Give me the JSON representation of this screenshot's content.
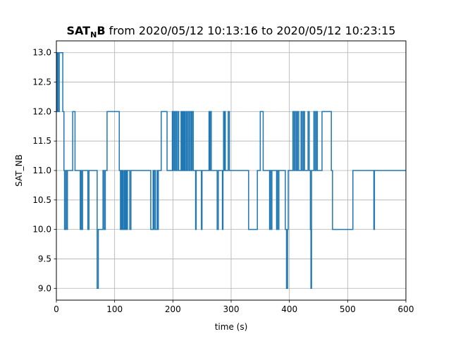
{
  "chart_data": {
    "type": "line",
    "title": {
      "bold": "SAT",
      "sub": "N",
      "bold2": "B",
      "rest": " from 2020/05/12 10:13:16 to 2020/05/12 10:23:15"
    },
    "xlabel": "time (s)",
    "ylabel": "SAT_NB",
    "xlim": [
      0,
      600
    ],
    "ylim": [
      8.8,
      13.2
    ],
    "xticks": [
      0,
      100,
      200,
      300,
      400,
      500,
      600
    ],
    "xtick_labels": [
      "0",
      "100",
      "200",
      "300",
      "400",
      "500",
      "600"
    ],
    "yticks": [
      9.0,
      9.5,
      10.0,
      10.5,
      11.0,
      11.5,
      12.0,
      12.5,
      13.0
    ],
    "ytick_labels": [
      "9.0",
      "9.5",
      "10.0",
      "10.5",
      "11.0",
      "11.5",
      "12.0",
      "12.5",
      "13.0"
    ],
    "grid": true,
    "line_style": "steps-post",
    "colors": {
      "line": "#1f77b4",
      "grid": "#b0b0b0"
    },
    "series": [
      {
        "x": [
          0,
          1,
          2,
          3,
          5,
          7,
          11,
          13,
          14,
          16,
          17,
          18,
          19,
          20,
          22,
          25,
          28,
          30,
          32,
          34,
          36,
          40,
          41,
          42,
          43,
          45,
          47,
          53,
          54,
          56,
          57,
          60,
          70,
          72,
          75,
          78,
          80,
          82,
          84,
          86,
          87,
          106,
          108,
          110,
          111,
          112,
          113,
          114,
          116,
          117,
          118,
          119,
          120,
          121,
          122,
          126,
          128,
          161,
          162,
          166,
          167,
          168,
          170,
          173,
          174,
          175,
          177,
          178,
          180,
          182,
          190,
          191,
          198,
          199,
          200,
          201,
          203,
          204,
          206,
          208,
          210,
          213,
          214,
          215,
          216,
          217,
          218,
          219,
          220,
          221,
          223,
          224,
          226,
          228,
          230,
          232,
          233,
          235,
          237,
          239,
          240,
          243,
          245,
          249,
          250,
          256,
          257,
          260,
          262,
          263,
          264,
          266,
          268,
          270,
          276,
          278,
          280,
          282,
          285,
          286,
          287,
          288,
          289,
          290,
          292,
          295,
          297,
          325,
          330,
          345,
          346,
          349,
          350,
          355,
          365,
          366,
          367,
          369,
          370,
          372,
          378,
          379,
          381,
          382,
          392,
          393,
          395,
          397,
          398,
          400,
          402,
          404,
          406,
          408,
          410,
          412,
          414,
          416,
          420,
          422,
          424,
          426,
          430,
          432,
          434,
          436,
          437,
          438,
          440,
          442,
          444,
          446,
          448,
          450,
          452,
          456,
          472,
          473,
          474,
          509,
          510,
          513,
          545,
          546,
          553,
          554,
          555,
          600
        ],
        "y": [
          13,
          12,
          13,
          12,
          13,
          13,
          12,
          11,
          10,
          11,
          11,
          10,
          11,
          11,
          11,
          11,
          12,
          12,
          11,
          11,
          11,
          11,
          10,
          11,
          10,
          11,
          11,
          11,
          10,
          11,
          11,
          11,
          9,
          10,
          10,
          10,
          11,
          10,
          11,
          11,
          12,
          12,
          11,
          10,
          11,
          10,
          11,
          10,
          11,
          10,
          11,
          10,
          11,
          10,
          11,
          10,
          11,
          11,
          10,
          11,
          10,
          11,
          10,
          11,
          10,
          11,
          11,
          11,
          12,
          12,
          11,
          11,
          11,
          12,
          11,
          12,
          11,
          12,
          11,
          12,
          11,
          11,
          12,
          11,
          12,
          11,
          12,
          11,
          12,
          11,
          12,
          11,
          12,
          11,
          12,
          11,
          12,
          11,
          11,
          10,
          11,
          11,
          11,
          10,
          11,
          11,
          11,
          11,
          12,
          11,
          12,
          11,
          11,
          11,
          10,
          11,
          11,
          11,
          10,
          11,
          12,
          11,
          12,
          11,
          11,
          12,
          11,
          11,
          10,
          11,
          11,
          11,
          12,
          11,
          11,
          10,
          11,
          10,
          11,
          11,
          10,
          11,
          10,
          11,
          11,
          10,
          9,
          10,
          11,
          11,
          11,
          11,
          12,
          11,
          12,
          11,
          12,
          11,
          12,
          11,
          12,
          11,
          11,
          12,
          11,
          10,
          9,
          11,
          11,
          12,
          11,
          12,
          11,
          11,
          11,
          12,
          11,
          11,
          10,
          11,
          11,
          11,
          10,
          11,
          11,
          11,
          11,
          11
        ]
      }
    ]
  }
}
